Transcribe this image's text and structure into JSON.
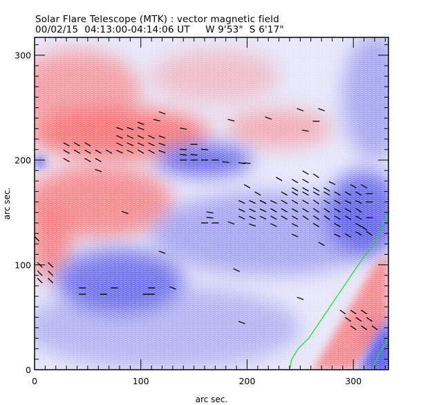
{
  "header": {
    "title": "Solar Flare Telescope (MTK) : vector magnetic field",
    "subtitle": "00/02/15  04:13:00-04:14:06 UT     W 9'53\"  S 6'17\""
  },
  "chart_data": {
    "type": "heatmap",
    "title": "Solar Flare Telescope (MTK) : vector magnetic field",
    "subtitle": "00/02/15  04:13:00-04:14:06 UT     W 9'53\"  S 6'17\"",
    "xlabel": "arc sec.",
    "ylabel": "arc sec.",
    "xlim": [
      0,
      333
    ],
    "ylim": [
      0,
      317
    ],
    "xticks": [
      0,
      100,
      200,
      300
    ],
    "yticks": [
      0,
      100,
      200,
      300
    ],
    "xtick_labels": [
      "0",
      "100",
      "200",
      "300"
    ],
    "ytick_labels": [
      "0",
      "100",
      "200",
      "300"
    ],
    "colors": {
      "positive": "#ff6e6e",
      "negative": "#5a5aee",
      "contour": "#22dd22",
      "vector": "#000000"
    },
    "regions": [
      {
        "polarity": "positive",
        "cx": 80,
        "cy": 225,
        "rx": 85,
        "ry": 25,
        "strength": 0.9
      },
      {
        "polarity": "positive",
        "cx": 40,
        "cy": 265,
        "rx": 60,
        "ry": 40,
        "strength": 0.6
      },
      {
        "polarity": "positive",
        "cx": 60,
        "cy": 160,
        "rx": 70,
        "ry": 35,
        "strength": 0.75
      },
      {
        "polarity": "positive",
        "cx": 15,
        "cy": 120,
        "rx": 20,
        "ry": 35,
        "strength": 0.8
      },
      {
        "polarity": "positive",
        "cx": 230,
        "cy": 230,
        "rx": 50,
        "ry": 18,
        "strength": 0.5
      },
      {
        "polarity": "positive",
        "cx": 170,
        "cy": 280,
        "rx": 60,
        "ry": 25,
        "strength": 0.35
      },
      {
        "polarity": "negative",
        "cx": 160,
        "cy": 200,
        "rx": 45,
        "ry": 15,
        "strength": 0.9
      },
      {
        "polarity": "negative",
        "cx": 80,
        "cy": 85,
        "rx": 60,
        "ry": 30,
        "strength": 0.8
      },
      {
        "polarity": "negative",
        "cx": 310,
        "cy": 150,
        "rx": 35,
        "ry": 40,
        "strength": 0.85
      },
      {
        "polarity": "negative",
        "cx": 220,
        "cy": 130,
        "rx": 110,
        "ry": 40,
        "strength": 0.45
      },
      {
        "polarity": "negative",
        "cx": 120,
        "cy": 40,
        "rx": 130,
        "ry": 40,
        "strength": 0.35
      },
      {
        "polarity": "negative",
        "cx": 320,
        "cy": 260,
        "rx": 30,
        "ry": 60,
        "strength": 0.45
      },
      {
        "polarity": "negative",
        "cx": 330,
        "cy": 20,
        "rx": 20,
        "ry": 30,
        "strength": 0.9
      },
      {
        "polarity": "negative",
        "cx": 5,
        "cy": 198,
        "rx": 6,
        "ry": 6,
        "strength": 0.8
      }
    ],
    "vectors": [
      [
        30,
        215,
        -30
      ],
      [
        40,
        215,
        -30
      ],
      [
        50,
        215,
        -30
      ],
      [
        30,
        208,
        -30
      ],
      [
        40,
        208,
        -30
      ],
      [
        50,
        208,
        -30
      ],
      [
        60,
        208,
        -30
      ],
      [
        70,
        208,
        -30
      ],
      [
        30,
        200,
        -30
      ],
      [
        50,
        200,
        -30
      ],
      [
        60,
        200,
        -30
      ],
      [
        80,
        230,
        -20
      ],
      [
        90,
        230,
        -20
      ],
      [
        100,
        230,
        -20
      ],
      [
        80,
        222,
        -25
      ],
      [
        90,
        222,
        -25
      ],
      [
        100,
        222,
        -25
      ],
      [
        110,
        222,
        -25
      ],
      [
        120,
        222,
        -20
      ],
      [
        80,
        215,
        -25
      ],
      [
        90,
        215,
        -25
      ],
      [
        100,
        215,
        -25
      ],
      [
        110,
        215,
        -25
      ],
      [
        120,
        215,
        -20
      ],
      [
        80,
        208,
        -25
      ],
      [
        90,
        208,
        -25
      ],
      [
        100,
        208,
        -30
      ],
      [
        110,
        208,
        -30
      ],
      [
        120,
        208,
        -20
      ],
      [
        100,
        235,
        -20
      ],
      [
        115,
        238,
        -15
      ],
      [
        120,
        245,
        -20
      ],
      [
        140,
        205,
        -5
      ],
      [
        150,
        205,
        -5
      ],
      [
        140,
        210,
        -5
      ],
      [
        160,
        210,
        -5
      ],
      [
        150,
        215,
        0
      ],
      [
        140,
        200,
        0
      ],
      [
        150,
        200,
        0
      ],
      [
        160,
        200,
        0
      ],
      [
        170,
        200,
        0
      ],
      [
        180,
        198,
        -5
      ],
      [
        195,
        197,
        -10
      ],
      [
        200,
        197,
        -5
      ],
      [
        60,
        190,
        -20
      ],
      [
        85,
        150,
        -20
      ],
      [
        140,
        230,
        -10
      ],
      [
        185,
        238,
        -15
      ],
      [
        220,
        240,
        -20
      ],
      [
        250,
        248,
        -20
      ],
      [
        270,
        248,
        -20
      ],
      [
        255,
        228,
        -10
      ],
      [
        265,
        237,
        0
      ],
      [
        200,
        175,
        -30
      ],
      [
        210,
        168,
        -30
      ],
      [
        215,
        160,
        -30
      ],
      [
        195,
        160,
        -25
      ],
      [
        205,
        160,
        -25
      ],
      [
        215,
        160,
        -25
      ],
      [
        225,
        160,
        -25
      ],
      [
        235,
        160,
        -30
      ],
      [
        245,
        160,
        -30
      ],
      [
        255,
        160,
        -30
      ],
      [
        265,
        160,
        -35
      ],
      [
        275,
        160,
        -30
      ],
      [
        285,
        160,
        -30
      ],
      [
        195,
        152,
        -25
      ],
      [
        205,
        152,
        -25
      ],
      [
        215,
        152,
        -25
      ],
      [
        225,
        152,
        -30
      ],
      [
        235,
        152,
        -30
      ],
      [
        245,
        152,
        -30
      ],
      [
        255,
        152,
        -30
      ],
      [
        265,
        152,
        -35
      ],
      [
        275,
        152,
        -35
      ],
      [
        285,
        152,
        -30
      ],
      [
        295,
        152,
        -30
      ],
      [
        305,
        152,
        -35
      ],
      [
        195,
        145,
        -25
      ],
      [
        205,
        145,
        -25
      ],
      [
        215,
        145,
        -25
      ],
      [
        225,
        145,
        -30
      ],
      [
        235,
        145,
        -30
      ],
      [
        245,
        145,
        -30
      ],
      [
        255,
        145,
        -35
      ],
      [
        265,
        145,
        -35
      ],
      [
        275,
        145,
        -35
      ],
      [
        285,
        145,
        -30
      ],
      [
        295,
        145,
        -30
      ],
      [
        305,
        145,
        -30
      ],
      [
        315,
        145,
        0
      ],
      [
        185,
        140,
        -20
      ],
      [
        205,
        138,
        -20
      ],
      [
        225,
        138,
        -25
      ],
      [
        245,
        138,
        -25
      ],
      [
        265,
        138,
        -30
      ],
      [
        285,
        138,
        -30
      ],
      [
        305,
        138,
        -30
      ],
      [
        245,
        180,
        -30
      ],
      [
        255,
        180,
        -30
      ],
      [
        265,
        172,
        -30
      ],
      [
        255,
        172,
        -30
      ],
      [
        245,
        172,
        -30
      ],
      [
        265,
        185,
        -35
      ],
      [
        255,
        188,
        -30
      ],
      [
        275,
        172,
        -30
      ],
      [
        235,
        168,
        -30
      ],
      [
        245,
        168,
        -30
      ],
      [
        255,
        168,
        -30
      ],
      [
        265,
        168,
        -30
      ],
      [
        275,
        168,
        -30
      ],
      [
        285,
        168,
        -30
      ],
      [
        295,
        168,
        -30
      ],
      [
        305,
        168,
        -30
      ],
      [
        315,
        168,
        0
      ],
      [
        295,
        160,
        -25
      ],
      [
        305,
        160,
        -25
      ],
      [
        315,
        160,
        0
      ],
      [
        300,
        175,
        -30
      ],
      [
        310,
        175,
        -30
      ],
      [
        280,
        178,
        -25
      ],
      [
        230,
        182,
        -30
      ],
      [
        165,
        145,
        -5
      ],
      [
        170,
        140,
        0
      ],
      [
        160,
        140,
        0
      ],
      [
        165,
        150,
        -10
      ],
      [
        310,
        135,
        -35
      ],
      [
        315,
        130,
        -35
      ],
      [
        305,
        130,
        -30
      ],
      [
        295,
        128,
        -30
      ],
      [
        285,
        128,
        -25
      ],
      [
        245,
        128,
        -25
      ],
      [
        270,
        120,
        -30
      ],
      [
        2,
        125,
        -45
      ],
      [
        5,
        100,
        -45
      ],
      [
        15,
        100,
        -45
      ],
      [
        5,
        92,
        -45
      ],
      [
        15,
        92,
        -45
      ],
      [
        5,
        85,
        -45
      ],
      [
        15,
        85,
        -45
      ],
      [
        45,
        78,
        0
      ],
      [
        45,
        72,
        0
      ],
      [
        75,
        78,
        0
      ],
      [
        65,
        72,
        0
      ],
      [
        110,
        78,
        0
      ],
      [
        110,
        72,
        0
      ],
      [
        105,
        72,
        0
      ],
      [
        130,
        78,
        -20
      ],
      [
        190,
        95,
        -25
      ],
      [
        120,
        112,
        -20
      ],
      [
        250,
        68,
        -20
      ],
      [
        195,
        45,
        -20
      ],
      [
        290,
        55,
        -35
      ],
      [
        300,
        55,
        -35
      ],
      [
        310,
        55,
        -35
      ],
      [
        295,
        48,
        -35
      ],
      [
        305,
        48,
        -35
      ],
      [
        315,
        48,
        -35
      ],
      [
        300,
        40,
        -35
      ],
      [
        310,
        40,
        -35
      ],
      [
        320,
        40,
        -35
      ]
    ],
    "contours": [
      [
        [
          240,
          0
        ],
        [
          242,
          10
        ],
        [
          248,
          20
        ],
        [
          258,
          30
        ],
        [
          268,
          45
        ],
        [
          278,
          60
        ],
        [
          288,
          75
        ],
        [
          298,
          90
        ],
        [
          308,
          105
        ],
        [
          318,
          118
        ],
        [
          325,
          130
        ],
        [
          330,
          145
        ],
        [
          333,
          150
        ]
      ],
      [
        [
          318,
          0
        ],
        [
          322,
          10
        ],
        [
          327,
          20
        ],
        [
          333,
          30
        ]
      ]
    ]
  }
}
